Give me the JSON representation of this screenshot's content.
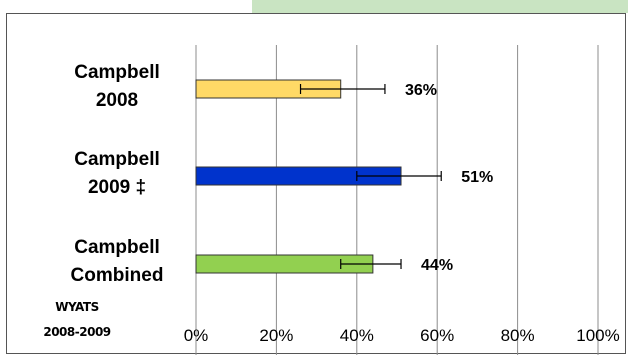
{
  "chart_data": {
    "type": "bar",
    "orientation": "horizontal",
    "categories": [
      [
        "Campbell",
        "2008"
      ],
      [
        "Campbell",
        "2009 ‡"
      ],
      [
        "Campbell",
        "Combined"
      ]
    ],
    "values": [
      36,
      51,
      44
    ],
    "error_low": [
      26,
      40,
      36
    ],
    "error_high": [
      47,
      61,
      51
    ],
    "data_labels": [
      "36%",
      "51%",
      "44%"
    ],
    "colors": [
      "#ffd966",
      "#0033cc",
      "#92d050"
    ],
    "xlim": [
      0,
      100
    ],
    "x_ticks": [
      0,
      20,
      40,
      60,
      80,
      100
    ],
    "x_tick_labels": [
      "0%",
      "20%",
      "40%",
      "60%",
      "80%",
      "100%"
    ],
    "grid": "vertical",
    "title": "",
    "xlabel": "",
    "ylabel": "",
    "source_label": [
      "WYATS",
      "2008-2009"
    ]
  }
}
